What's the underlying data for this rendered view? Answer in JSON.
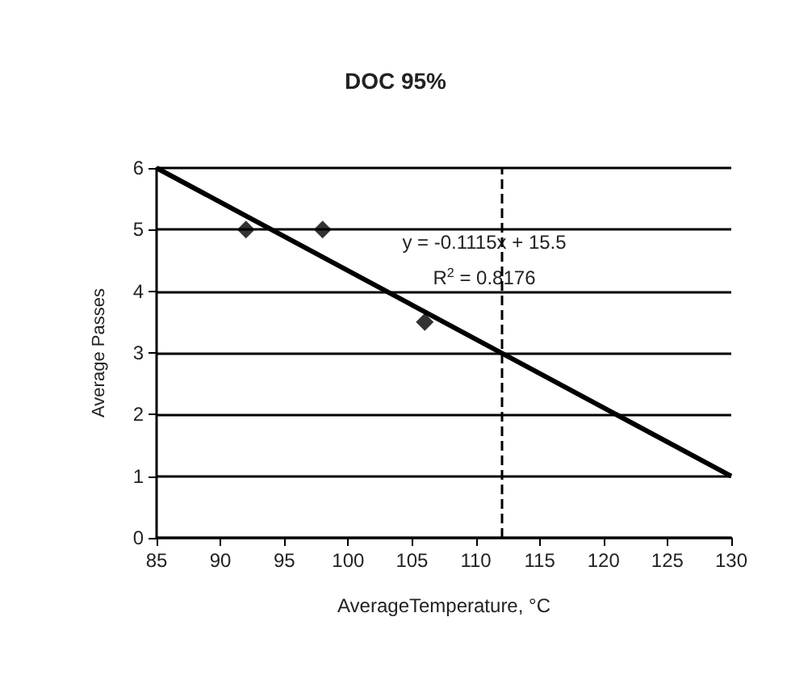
{
  "chart_data": {
    "type": "scatter",
    "title": "DOC 95%",
    "xlabel": "AverageTemperature, °C",
    "ylabel": "Average Passes",
    "series": [
      {
        "color": "#000000",
        "x": [
          92,
          98,
          106
        ],
        "values": [
          5,
          5,
          3.5
        ],
        "marker": "diamond"
      },
      {
        "type": "line",
        "color": "#000000",
        "x": [
          85,
          130
        ],
        "values": [
          6,
          1
        ],
        "marker": "none"
      }
    ],
    "xlim": [
      85,
      130
    ],
    "xticks": [
      85,
      90,
      95,
      100,
      105,
      110,
      115,
      120,
      125,
      130
    ],
    "ylim": [
      0,
      6
    ],
    "yticks": [
      0,
      1,
      2,
      3,
      4,
      5,
      6
    ],
    "grid": "y",
    "ref_lines": [
      {
        "axis": "x",
        "value": 112,
        "line_style": "dashed",
        "color": "#000000"
      }
    ],
    "annotations": [
      "y = -0.1115x + 15.5",
      "R$^{2}$ = 0.8176"
    ]
  }
}
